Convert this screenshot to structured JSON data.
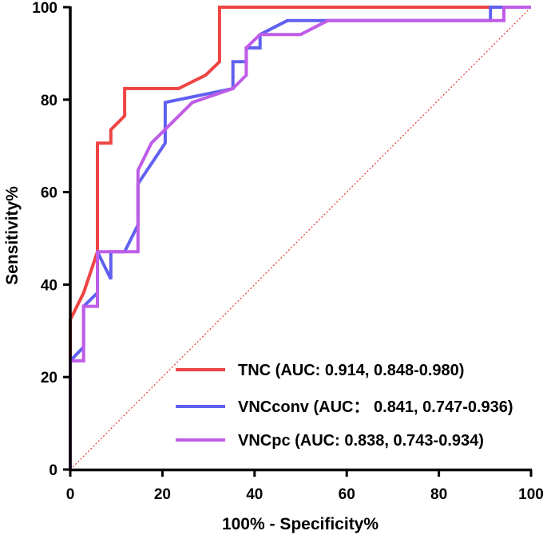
{
  "chart_data": {
    "type": "line",
    "title": "",
    "xlabel": "100% - Specificity%",
    "ylabel": "Sensitivity%",
    "xlim": [
      0,
      100
    ],
    "ylim": [
      0,
      100
    ],
    "xticks": [
      0,
      20,
      40,
      60,
      80,
      100
    ],
    "yticks": [
      0,
      20,
      40,
      60,
      80,
      100
    ],
    "legend_position": "bottom-right",
    "reference_line": {
      "name": "chance",
      "color": "#e8322e",
      "points": [
        [
          0,
          0
        ],
        [
          100,
          100
        ]
      ]
    },
    "series": [
      {
        "name": "TNC (AUC: 0.914, 0.848-0.980)",
        "color": "#ee4444",
        "x": [
          0,
          0,
          2.9,
          2.9,
          5.9,
          5.9,
          8.8,
          8.8,
          11.8,
          11.8,
          23.5,
          23.5,
          29.4,
          29.4,
          32.4,
          32.4,
          100
        ],
        "y": [
          23.5,
          32.4,
          38.2,
          38.2,
          47.1,
          70.6,
          70.6,
          73.5,
          76.5,
          82.4,
          82.4,
          82.4,
          85.3,
          85.3,
          88.2,
          100,
          100
        ]
      },
      {
        "name": "VNCconv (AUC： 0.841, 0.747-0.936)",
        "color": "#6060f0",
        "x": [
          0,
          2.9,
          2.9,
          5.9,
          5.9,
          8.8,
          8.8,
          11.8,
          14.7,
          14.7,
          20.6,
          20.6,
          35.3,
          35.3,
          38.2,
          38.2,
          41.2,
          41.2,
          47.1,
          47.1,
          55.9,
          55.9,
          91.2,
          91.2,
          100
        ],
        "y": [
          23.5,
          26.5,
          35.3,
          38.2,
          47.1,
          41.2,
          47.1,
          47.1,
          52.9,
          61.8,
          70.6,
          79.4,
          82.4,
          88.2,
          88.2,
          91.2,
          91.2,
          94.1,
          97.1,
          97.1,
          97.1,
          97.1,
          97.1,
          100,
          100
        ]
      },
      {
        "name": "VNCpc (AUC: 0.838, 0.743-0.934)",
        "color": "#c05ce8",
        "x": [
          0,
          0,
          2.9,
          2.9,
          5.9,
          5.9,
          14.7,
          14.7,
          17.6,
          26.5,
          35.3,
          38.2,
          38.2,
          41.2,
          41.2,
          50,
          55.9,
          94.1,
          94.1,
          100
        ],
        "y": [
          0,
          23.5,
          23.5,
          35.3,
          35.3,
          47.1,
          47.1,
          64.7,
          70.6,
          79.4,
          82.4,
          85.3,
          91.2,
          94.1,
          94.1,
          94.1,
          97.1,
          97.1,
          100,
          100
        ]
      }
    ]
  }
}
